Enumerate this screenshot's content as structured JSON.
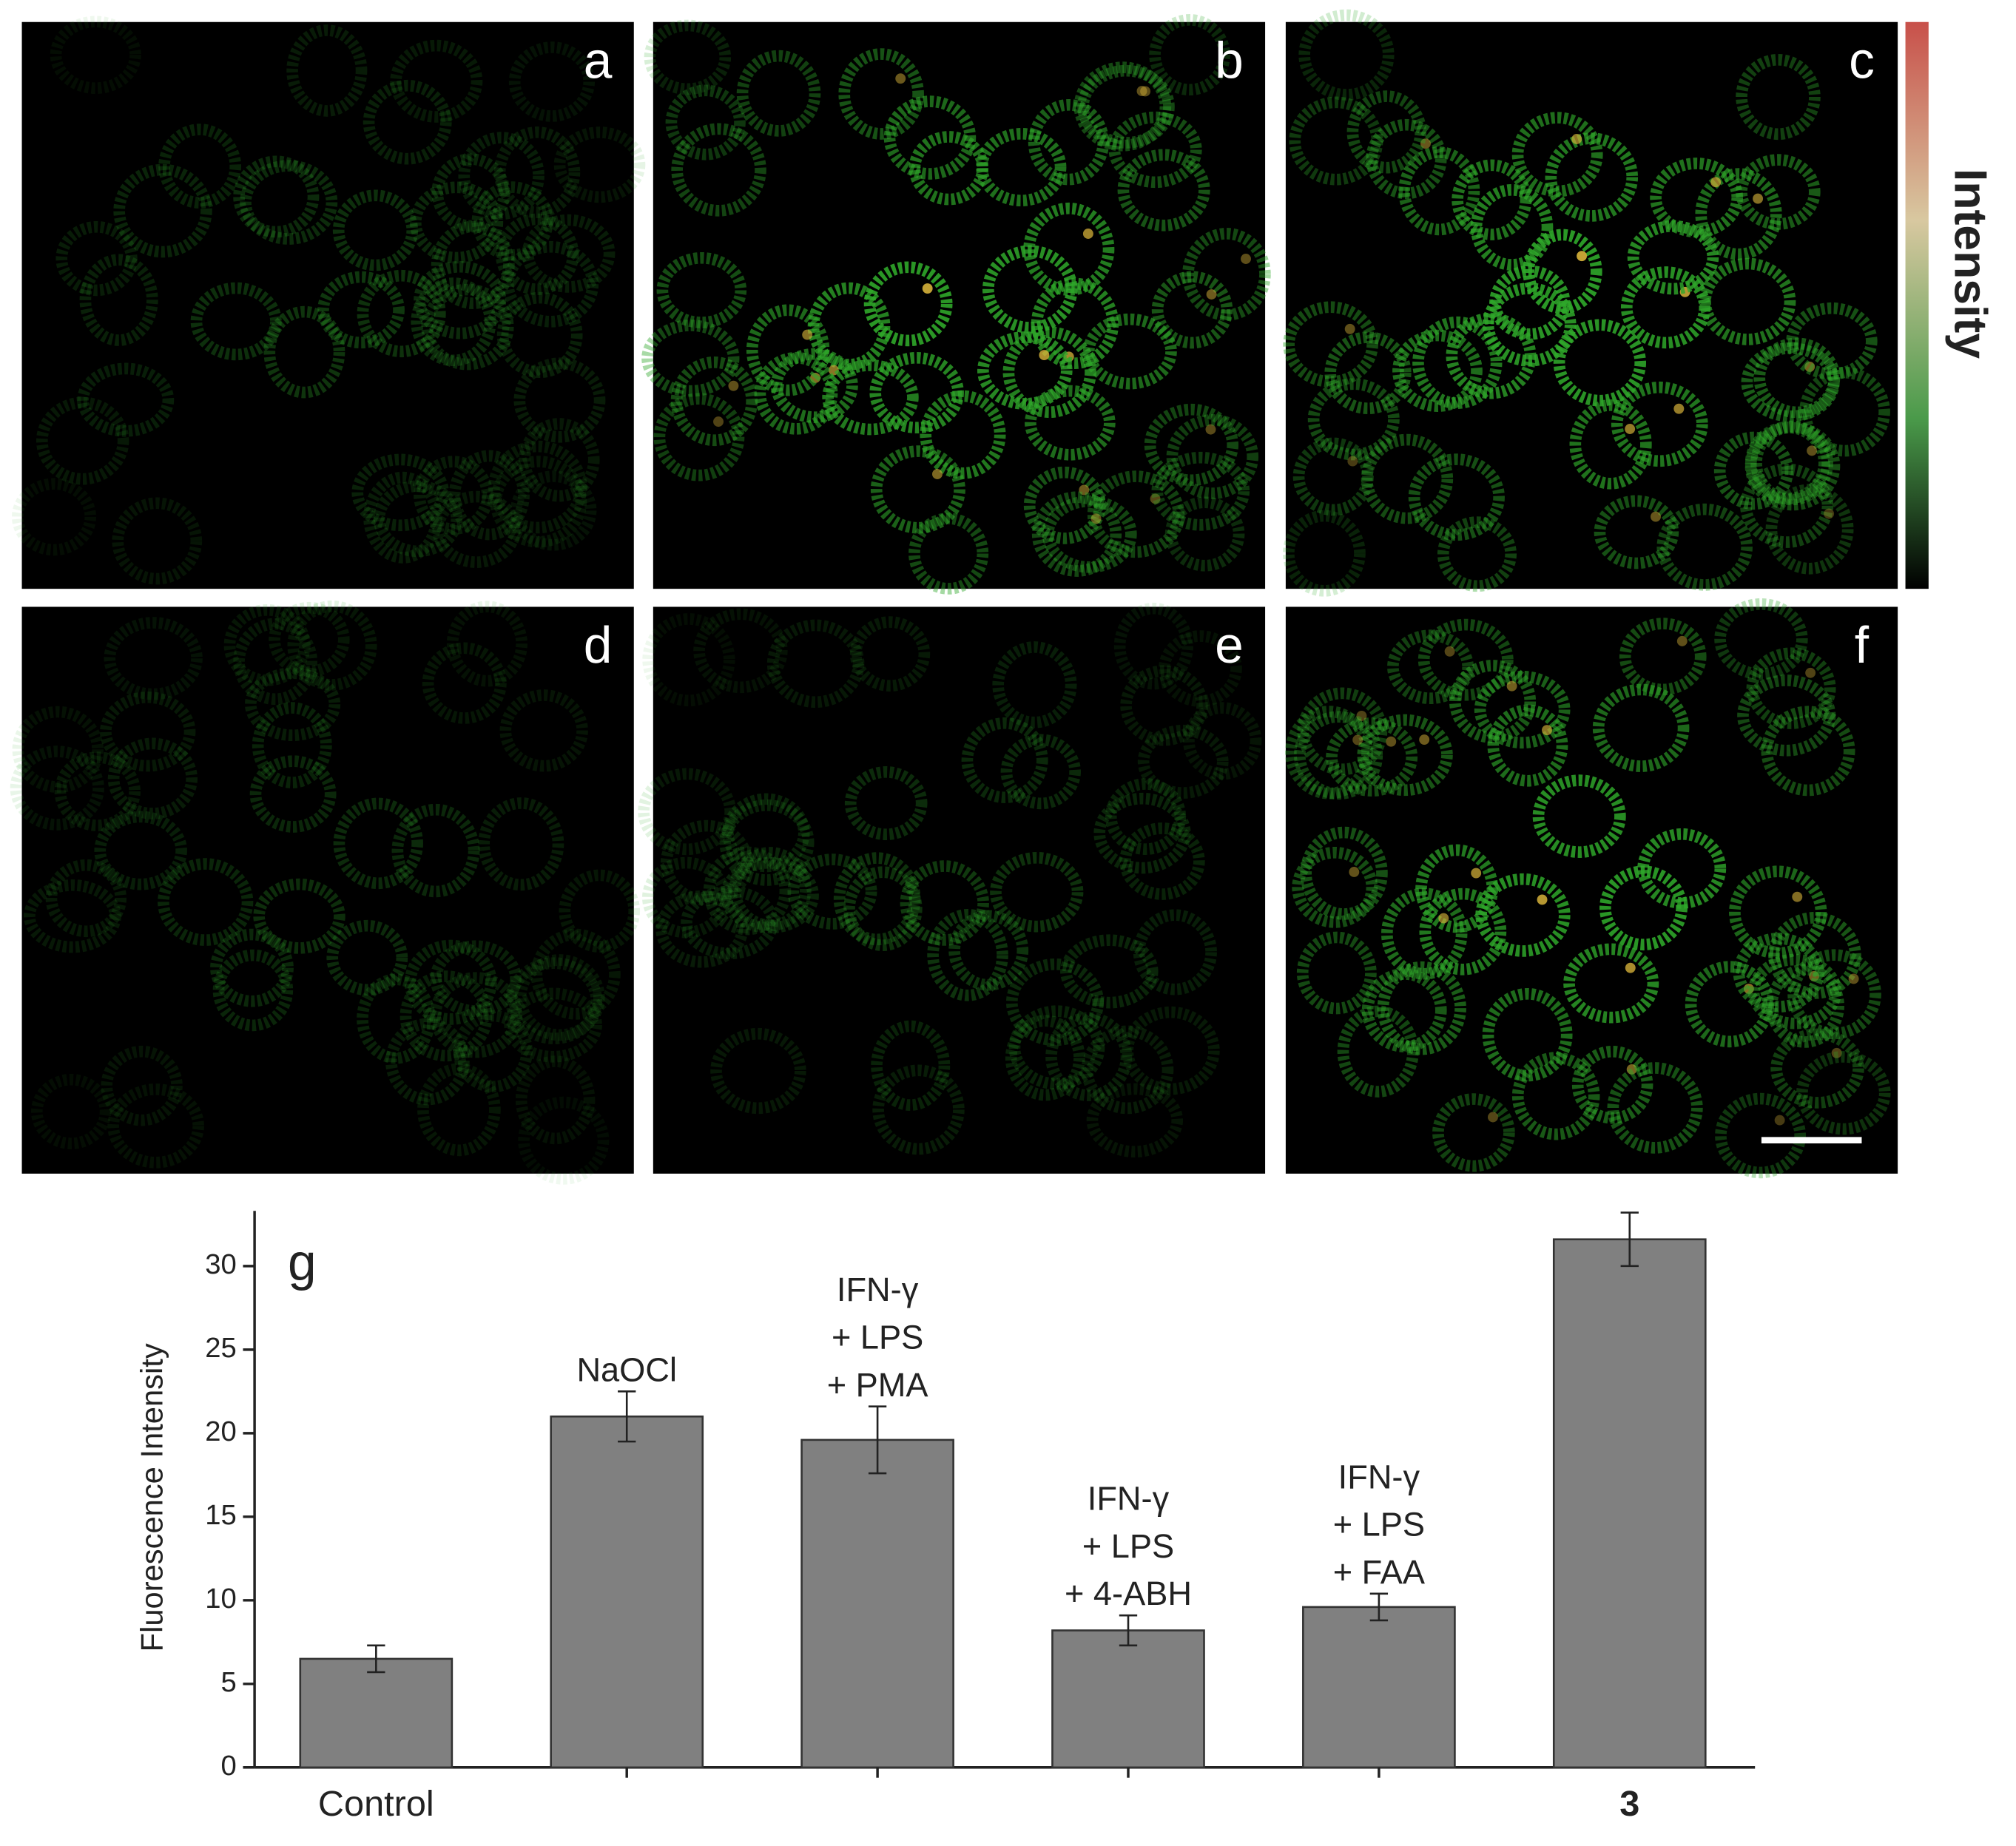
{
  "panels": [
    {
      "label": "a"
    },
    {
      "label": "b"
    },
    {
      "label": "c"
    },
    {
      "label": "d"
    },
    {
      "label": "e"
    },
    {
      "label": "f"
    }
  ],
  "colorbar_label": "Intensity",
  "chart_data": {
    "type": "bar",
    "panel_label": "g",
    "y_label": "Fluorescence Intensity",
    "categories": [
      "Control",
      null,
      null,
      null,
      null,
      "3"
    ],
    "bar_labels": [
      null,
      [
        "NaOCl"
      ],
      [
        "IFN-γ",
        "+ LPS",
        "+ PMA"
      ],
      [
        "IFN-γ",
        "+ LPS",
        "+ 4-ABH"
      ],
      [
        "IFN-γ",
        "+ LPS",
        "+ FAA"
      ],
      null
    ],
    "values": [
      6.5,
      21.0,
      19.6,
      8.2,
      9.6,
      31.6
    ],
    "errors": [
      0.8,
      1.5,
      2.0,
      0.9,
      0.8,
      1.6
    ],
    "color": "#808080",
    "ylim": [
      0,
      33.3
    ],
    "yticks": [
      0,
      5,
      10,
      15,
      20,
      25,
      30
    ]
  }
}
